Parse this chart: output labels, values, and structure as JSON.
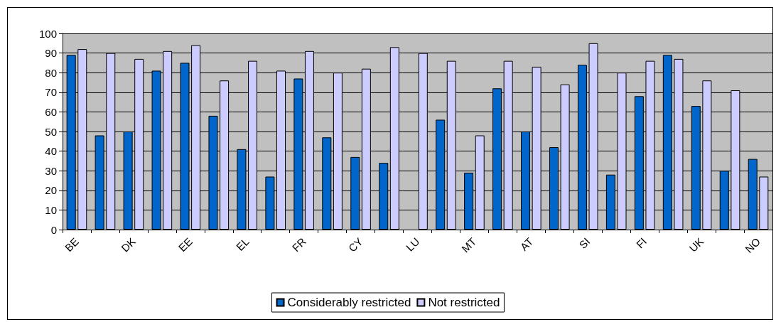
{
  "chart_data": {
    "type": "bar",
    "categories": [
      "BE",
      null,
      "DK",
      null,
      "EE",
      null,
      "EL",
      null,
      "FR",
      null,
      "CY",
      null,
      "LU",
      null,
      "MT",
      null,
      "AT",
      null,
      "SI",
      null,
      "FI",
      null,
      "UK",
      null,
      "NO"
    ],
    "series": [
      {
        "name": "Considerably restricted",
        "color": "#0066cc",
        "values": [
          89,
          48,
          50,
          81,
          85,
          58,
          41,
          27,
          77,
          47,
          37,
          34,
          null,
          56,
          29,
          72,
          50,
          42,
          84,
          28,
          68,
          89,
          63,
          30,
          36
        ]
      },
      {
        "name": "Not restricted",
        "color": "#ccccff",
        "values": [
          92,
          90,
          87,
          91,
          94,
          76,
          86,
          81,
          91,
          80,
          82,
          93,
          90,
          86,
          48,
          86,
          83,
          74,
          95,
          80,
          86,
          87,
          76,
          71,
          27
        ]
      }
    ],
    "ylim": [
      0,
      100
    ],
    "yticks": [
      0,
      10,
      20,
      30,
      40,
      50,
      60,
      70,
      80,
      90,
      100
    ],
    "grid": "y",
    "legend": "bottom"
  }
}
